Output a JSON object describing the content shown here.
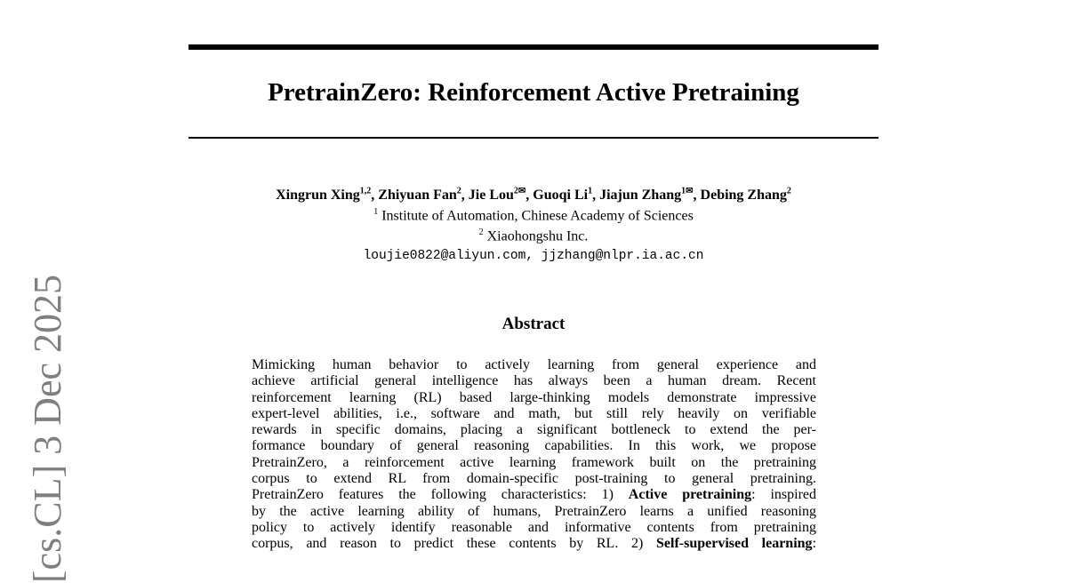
{
  "sidebar_stamp": "[cs.CL]  3 Dec 2025",
  "title": "PretrainZero: Reinforcement Active Pretraining",
  "authors": [
    {
      "name": "Xingrun Xing",
      "sup": "1,2"
    },
    {
      "name": "Zhiyuan Fan",
      "sup": "2"
    },
    {
      "name": "Jie Lou",
      "sup": "2✉"
    },
    {
      "name": "Guoqi Li",
      "sup": "1"
    },
    {
      "name": "Jiajun Zhang",
      "sup": "1✉"
    },
    {
      "name": "Debing Zhang",
      "sup": "2"
    }
  ],
  "affiliations": [
    {
      "sup": "1",
      "name": "Institute of Automation, Chinese Academy of Sciences"
    },
    {
      "sup": "2",
      "name": "Xiaohongshu Inc."
    }
  ],
  "emails": "loujie0822@aliyun.com, jjzhang@nlpr.ia.ac.cn",
  "abstract_heading": "Abstract",
  "abstract_lines": [
    "Mimicking human behavior to actively learning from general experience and",
    "achieve artificial general intelligence has always been a human dream. Recent",
    "reinforcement learning (RL) based large-thinking models demonstrate impressive",
    "expert-level abilities, i.e., software and math, but still rely heavily on verifiable",
    "rewards in specific domains, placing a significant bottleneck to extend the per-",
    "formance boundary of general reasoning capabilities. In this work, we propose",
    "PretrainZero, a reinforcement active learning framework built on the pretraining",
    "corpus to extend RL from domain-specific post-training to general pretraining."
  ],
  "abstract_line9": {
    "pre": "PretrainZero features the following characteristics: 1) ",
    "bold": "Active pretraining",
    "post": ": inspired"
  },
  "abstract_line10": "by the active learning ability of humans, PretrainZero learns a unified reasoning",
  "abstract_line11": "policy to actively identify reasonable and informative contents from pretraining",
  "abstract_line12": {
    "pre": "corpus, and reason to predict these contents by RL. 2) ",
    "bold": "Self-supervised learning",
    "post": ":"
  }
}
